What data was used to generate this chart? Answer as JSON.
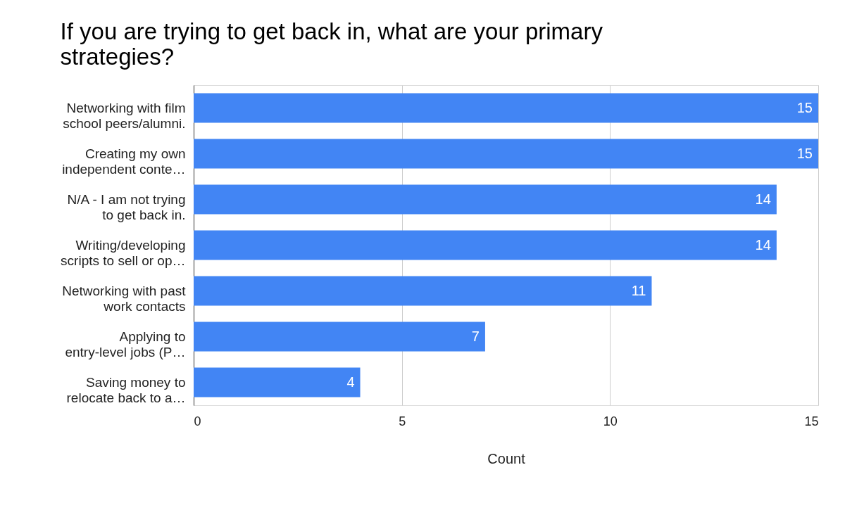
{
  "chart_data": {
    "type": "bar",
    "orientation": "horizontal",
    "title": "If you are trying to get back in, what are your primary\nstrategies?",
    "xlabel": "Count",
    "categories": [
      "Networking with film\nschool peers/alumni.",
      "Creating my own\nindependent conte…",
      "N/A - I am not trying\nto get back in.",
      "Writing/developing\nscripts to sell or op…",
      "Networking with past\nwork contacts",
      "Applying to\nentry-level jobs (P…",
      "Saving money to\nrelocate back to a…"
    ],
    "values": [
      15,
      15,
      14,
      14,
      11,
      7,
      4
    ],
    "color": "#4285f4",
    "xlim": [
      0,
      15
    ],
    "xticks": [
      0,
      5,
      10,
      15
    ],
    "grid": "x",
    "data_labels": true
  }
}
